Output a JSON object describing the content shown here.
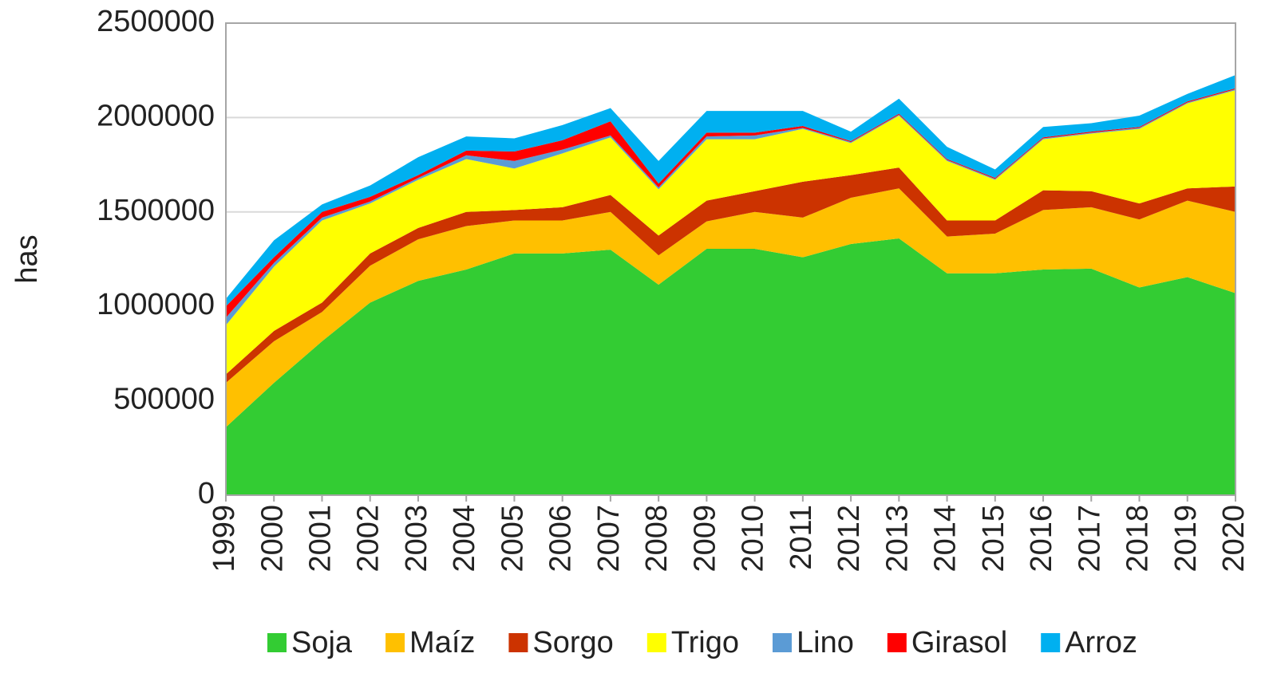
{
  "chart_data": {
    "type": "stacked_area",
    "y_label": "has",
    "categories": [
      "1999",
      "2000",
      "2001",
      "2002",
      "2003",
      "2004",
      "2005",
      "2006",
      "2007",
      "2008",
      "2009",
      "2010",
      "2011",
      "2012",
      "2013",
      "2014",
      "2015",
      "2016",
      "2017",
      "2018",
      "2019",
      "2020"
    ],
    "ylim": [
      0,
      2500000
    ],
    "yticks": [
      0,
      500000,
      1000000,
      1500000,
      2000000,
      2500000
    ],
    "grid": true,
    "legend": "bottom",
    "series": [
      {
        "name": "Soja",
        "color": "#33cc33",
        "values": [
          360000,
          595000,
          815000,
          1020000,
          1135000,
          1195000,
          1280000,
          1280000,
          1300000,
          1115000,
          1305000,
          1305000,
          1260000,
          1330000,
          1360000,
          1175000,
          1175000,
          1195000,
          1200000,
          1100000,
          1155000,
          1070000
        ]
      },
      {
        "name": "Maíz",
        "color": "#ffc000",
        "values": [
          235000,
          220000,
          155000,
          195000,
          220000,
          230000,
          175000,
          175000,
          200000,
          155000,
          145000,
          195000,
          210000,
          245000,
          265000,
          195000,
          210000,
          315000,
          325000,
          360000,
          405000,
          430000
        ]
      },
      {
        "name": "Sorgo",
        "color": "#cc3300",
        "values": [
          45000,
          55000,
          50000,
          65000,
          60000,
          75000,
          55000,
          70000,
          90000,
          105000,
          110000,
          110000,
          190000,
          120000,
          110000,
          85000,
          70000,
          105000,
          85000,
          85000,
          65000,
          135000
        ]
      },
      {
        "name": "Trigo",
        "color": "#ffff00",
        "values": [
          260000,
          340000,
          435000,
          265000,
          255000,
          280000,
          220000,
          285000,
          305000,
          245000,
          325000,
          275000,
          280000,
          170000,
          275000,
          315000,
          215000,
          270000,
          305000,
          395000,
          450000,
          510000
        ]
      },
      {
        "name": "Lino",
        "color": "#5b9bd5",
        "values": [
          40000,
          20000,
          15000,
          10000,
          10000,
          20000,
          40000,
          20000,
          10000,
          10000,
          15000,
          20000,
          5000,
          5000,
          5000,
          5000,
          5000,
          5000,
          5000,
          5000,
          5000,
          5000
        ]
      },
      {
        "name": "Girasol",
        "color": "#ff0000",
        "values": [
          60000,
          30000,
          30000,
          25000,
          15000,
          25000,
          50000,
          50000,
          75000,
          20000,
          20000,
          15000,
          10000,
          5000,
          5000,
          5000,
          5000,
          5000,
          5000,
          5000,
          5000,
          5000
        ]
      },
      {
        "name": "Arroz",
        "color": "#00b0f0",
        "values": [
          40000,
          90000,
          40000,
          60000,
          95000,
          75000,
          70000,
          80000,
          70000,
          120000,
          115000,
          115000,
          80000,
          50000,
          80000,
          65000,
          45000,
          55000,
          45000,
          60000,
          40000,
          70000
        ]
      }
    ]
  }
}
